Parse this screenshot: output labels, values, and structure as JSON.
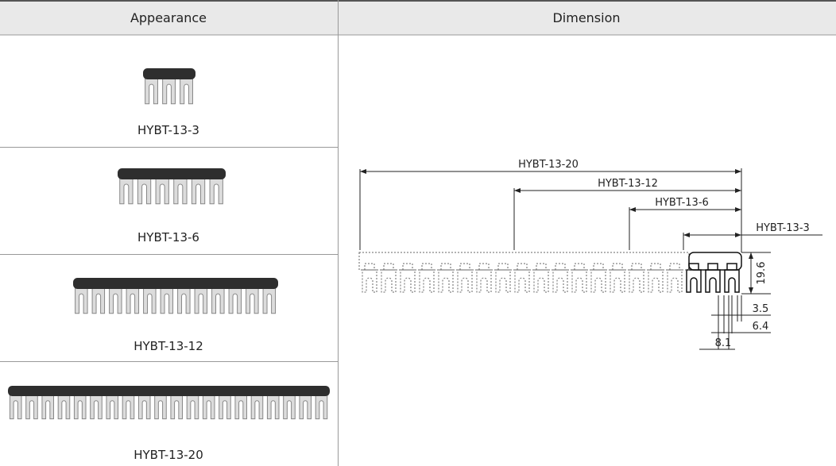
{
  "table": {
    "headers": [
      "Appearance",
      "Dimension"
    ],
    "rows": [
      [
        "HYBT-13-3"
      ],
      [
        "HYBT-13-6"
      ],
      [
        "HYBT-13-12"
      ],
      [
        "HYBT-13-20"
      ]
    ]
  },
  "drawing": {
    "lengths": [
      "HYBT-13-20",
      "HYBT-13-12",
      "HYBT-13-6",
      "HYBT-13-3"
    ],
    "measures": [
      "19.6",
      "3.5",
      "6.4",
      "8.1"
    ]
  }
}
